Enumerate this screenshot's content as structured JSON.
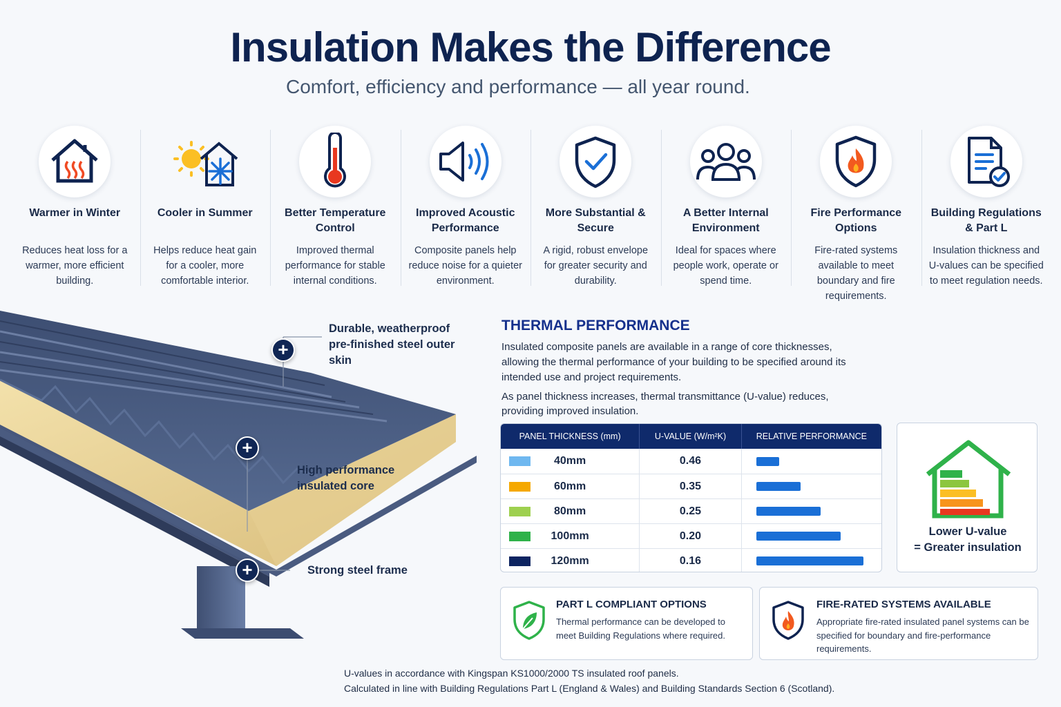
{
  "header": {
    "title": "Insulation Makes the Difference",
    "subtitle": "Comfort, efficiency and performance — all year round."
  },
  "features": [
    {
      "icon": "house-heat-icon",
      "title": "Warmer in Winter",
      "desc": "Reduces heat loss for a warmer, more efficient building."
    },
    {
      "icon": "sun-snowflake-icon",
      "title": "Cooler in Summer",
      "desc": "Helps reduce heat gain for a cooler, more comfortable interior."
    },
    {
      "icon": "thermometer-icon",
      "title": "Better Temperature Control",
      "desc": "Improved thermal performance for stable internal conditions."
    },
    {
      "icon": "speaker-icon",
      "title": "Improved Acoustic Performance",
      "desc": "Composite panels help reduce noise for a quieter environment."
    },
    {
      "icon": "shield-check-icon",
      "title": "More Substantial & Secure",
      "desc": "A rigid, robust envelope for greater security and durability."
    },
    {
      "icon": "people-icon",
      "title": "A Better Internal Environment",
      "desc": "Ideal for spaces where people work, operate or spend time."
    },
    {
      "icon": "fire-shield-icon",
      "title": "Fire Performance Options",
      "desc": "Fire-rated systems available to meet boundary and fire requirements."
    },
    {
      "icon": "document-check-icon",
      "title": "Building Regulations & Part L",
      "desc": "Insulation thickness and U-values can be specified to meet regulation needs."
    }
  ],
  "callouts": {
    "outer_skin": "Durable, weatherproof pre-finished steel outer skin",
    "core": "High performance insulated core",
    "frame": "Strong steel frame"
  },
  "thermal": {
    "heading": "THERMAL PERFORMANCE",
    "p1": "Insulated composite panels are available in a range of core thicknesses, allowing the thermal performance of your building to be specified around its intended use and project requirements.",
    "p2": "As panel thickness increases, thermal transmittance (U-value) reduces, providing improved insulation."
  },
  "table": {
    "headers": [
      "PANEL THICKNESS (mm)",
      "U-VALUE (W/m²K)",
      "RELATIVE PERFORMANCE"
    ],
    "rows": [
      {
        "thickness": "40mm",
        "uvalue": "0.46",
        "color": "#6fb8f0",
        "performance": 0.21
      },
      {
        "thickness": "60mm",
        "uvalue": "0.35",
        "color": "#f5a800",
        "performance": 0.41
      },
      {
        "thickness": "80mm",
        "uvalue": "0.25",
        "color": "#9ed04f",
        "performance": 0.6
      },
      {
        "thickness": "100mm",
        "uvalue": "0.20",
        "color": "#2fb24a",
        "performance": 0.79
      },
      {
        "thickness": "120mm",
        "uvalue": "0.16",
        "color": "#0d2461",
        "performance": 1.0
      }
    ]
  },
  "lowu": {
    "line1": "Lower U-value",
    "line2": "= Greater insulation"
  },
  "cards": [
    {
      "icon": "leaf-shield-icon",
      "title": "PART L COMPLIANT OPTIONS",
      "text": "Thermal performance can be developed to meet Building Regulations where required."
    },
    {
      "icon": "fire-shield-icon",
      "title": "FIRE-RATED SYSTEMS AVAILABLE",
      "text": "Appropriate fire-rated insulated panel systems can be specified for boundary and fire-performance requirements."
    }
  ],
  "footnote": {
    "line1": "U-values in accordance with Kingspan KS1000/2000 TS insulated roof panels.",
    "line2": "Calculated in line with Building Regulations Part L (England & Wales) and Building Standards Section 6 (Scotland)."
  }
}
